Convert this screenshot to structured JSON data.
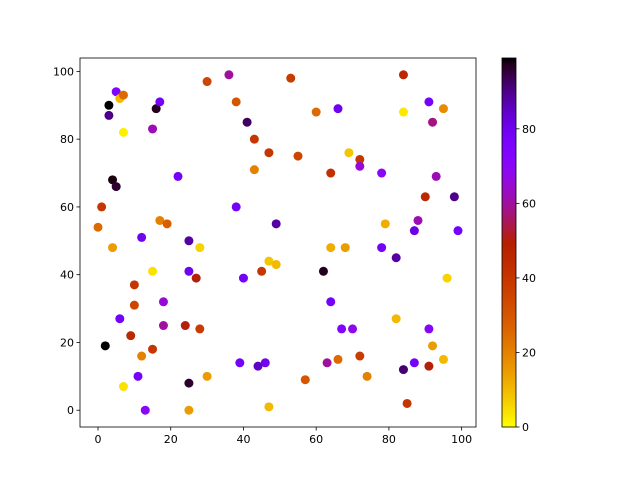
{
  "chart_data": {
    "type": "scatter",
    "x": [
      5,
      6,
      7,
      3,
      3,
      7,
      16,
      17,
      15,
      30,
      36,
      38,
      41,
      43,
      47,
      43,
      53,
      55,
      60,
      66,
      64,
      69,
      72,
      72,
      78,
      84,
      84,
      91,
      92,
      95,
      4,
      5,
      1,
      0,
      4,
      12,
      22,
      17,
      19,
      25,
      28,
      38,
      49,
      47,
      49,
      45,
      40,
      25,
      27,
      15,
      10,
      10,
      6,
      18,
      18,
      24,
      28,
      9,
      15,
      12,
      2,
      7,
      11,
      13,
      25,
      25,
      30,
      39,
      44,
      46,
      47,
      57,
      62,
      64,
      68,
      64,
      67,
      70,
      63,
      66,
      72,
      74,
      79,
      78,
      82,
      82,
      84,
      85,
      87,
      88,
      90,
      93,
      98,
      99,
      96,
      91,
      92,
      91,
      95,
      87
    ],
    "values": [
      94,
      92,
      93,
      90,
      87,
      82,
      89,
      91,
      83,
      97,
      99,
      91,
      85,
      80,
      76,
      71,
      98,
      75,
      88,
      89,
      70,
      76,
      74,
      72,
      70,
      99,
      88,
      91,
      85,
      89,
      68,
      66,
      60,
      54,
      48,
      51,
      69,
      56,
      55,
      50,
      48,
      60,
      55,
      44,
      43,
      41,
      39,
      41,
      39,
      41,
      37,
      31,
      27,
      32,
      25,
      25,
      24,
      22,
      18,
      16,
      19,
      7,
      10,
      0,
      8,
      0,
      10,
      14,
      13,
      14,
      1,
      9,
      41,
      48,
      48,
      32,
      24,
      24,
      14,
      15,
      16,
      10,
      55,
      48,
      45,
      27,
      12,
      2,
      53,
      56,
      63,
      69,
      63,
      53,
      39,
      24,
      19,
      13,
      15,
      14
    ],
    "color_values": [
      75,
      10,
      25,
      99,
      90,
      2,
      97,
      78,
      62,
      35,
      60,
      30,
      93,
      40,
      40,
      20,
      38,
      35,
      25,
      80,
      42,
      8,
      40,
      65,
      70,
      45,
      3,
      78,
      58,
      18,
      98,
      96,
      40,
      25,
      15,
      80,
      78,
      20,
      28,
      88,
      6,
      78,
      88,
      8,
      10,
      40,
      78,
      80,
      50,
      4,
      40,
      35,
      78,
      65,
      60,
      50,
      38,
      45,
      40,
      20,
      99,
      4,
      78,
      70,
      96,
      15,
      15,
      78,
      85,
      80,
      10,
      30,
      97,
      12,
      15,
      78,
      75,
      68,
      60,
      25,
      38,
      20,
      12,
      78,
      88,
      10,
      92,
      40,
      82,
      62,
      45,
      62,
      90,
      78,
      6,
      72,
      15,
      50,
      10,
      78
    ],
    "colormap": "gnuplot_r",
    "clim": [
      0,
      99
    ],
    "cticks": [
      0,
      20,
      40,
      60,
      80
    ],
    "xlim": [
      -4.95,
      103.95
    ],
    "xticks": [
      0,
      20,
      40,
      60,
      80,
      100
    ],
    "ylim": [
      -4.95,
      103.95
    ],
    "yticks": [
      0,
      20,
      40,
      60,
      80,
      100
    ]
  }
}
